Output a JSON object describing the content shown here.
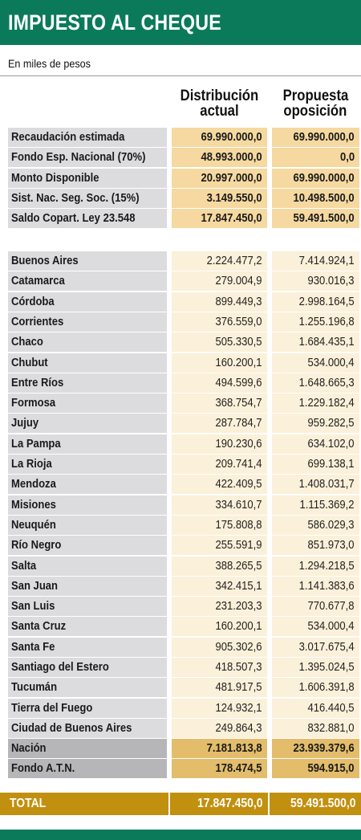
{
  "title": "IMPUESTO AL CHEQUE",
  "subtitle": "En miles de pesos",
  "columns": {
    "a_line1": "Distribución",
    "a_line2": "actual",
    "b_line1": "Propuesta",
    "b_line2": "oposición"
  },
  "summary": [
    {
      "label": "Recaudación estimada",
      "v1": "69.990.000,0",
      "v2": "69.990.000,0"
    },
    {
      "label": "Fondo Esp. Nacional (70%)",
      "v1": "48.993.000,0",
      "v2": "0,0"
    },
    {
      "label": "Monto Disponible",
      "v1": "20.997.000,0",
      "v2": "69.990.000,0"
    },
    {
      "label": "Sist. Nac. Seg. Soc. (15%)",
      "v1": "3.149.550,0",
      "v2": "10.498.500,0"
    },
    {
      "label": "Saldo Copart. Ley 23.548",
      "v1": "17.847.450,0",
      "v2": "59.491.500,0"
    }
  ],
  "provinces": [
    {
      "label": "Buenos Aires",
      "v1": "2.224.477,2",
      "v2": "7.414.924,1"
    },
    {
      "label": "Catamarca",
      "v1": "279.004,9",
      "v2": "930.016,3"
    },
    {
      "label": "Córdoba",
      "v1": "899.449,3",
      "v2": "2.998.164,5"
    },
    {
      "label": "Corrientes",
      "v1": "376.559,0",
      "v2": "1.255.196,8"
    },
    {
      "label": "Chaco",
      "v1": "505.330,5",
      "v2": "1.684.435,1"
    },
    {
      "label": "Chubut",
      "v1": "160.200,1",
      "v2": "534.000,4"
    },
    {
      "label": "Entre Ríos",
      "v1": "494.599,6",
      "v2": "1.648.665,3"
    },
    {
      "label": "Formosa",
      "v1": "368.754,7",
      "v2": "1.229.182,4"
    },
    {
      "label": "Jujuy",
      "v1": "287.784,7",
      "v2": "959.282,5"
    },
    {
      "label": "La Pampa",
      "v1": "190.230,6",
      "v2": "634.102,0"
    },
    {
      "label": "La Rioja",
      "v1": "209.741,4",
      "v2": "699.138,1"
    },
    {
      "label": "Mendoza",
      "v1": "422.409,5",
      "v2": "1.408.031,7"
    },
    {
      "label": "Misiones",
      "v1": "334.610,7",
      "v2": "1.115.369,2"
    },
    {
      "label": "Neuquén",
      "v1": "175.808,8",
      "v2": "586.029,3"
    },
    {
      "label": "Río Negro",
      "v1": "255.591,9",
      "v2": "851.973,0"
    },
    {
      "label": "Salta",
      "v1": "388.265,5",
      "v2": "1.294.218,5"
    },
    {
      "label": "San Juan",
      "v1": "342.415,1",
      "v2": "1.141.383,6"
    },
    {
      "label": "San Luis",
      "v1": "231.203,3",
      "v2": "770.677,8"
    },
    {
      "label": "Santa Cruz",
      "v1": "160.200,1",
      "v2": "534.000,4"
    },
    {
      "label": "Santa Fe",
      "v1": "905.302,6",
      "v2": "3.017.675,4"
    },
    {
      "label": "Santiago del Estero",
      "v1": "418.507,3",
      "v2": "1.395.024,5"
    },
    {
      "label": "Tucumán",
      "v1": "481.917,5",
      "v2": "1.606.391,8"
    },
    {
      "label": "Tierra del Fuego",
      "v1": "124.932,1",
      "v2": "416.440,5"
    },
    {
      "label": "Ciudad de Buenos Aires",
      "v1": "249.864,3",
      "v2": "832.881,0"
    }
  ],
  "national": [
    {
      "label": "Nación",
      "v1": "7.181.813,8",
      "v2": "23.939.379,6"
    },
    {
      "label": "Fondo A.T.N.",
      "v1": "178.474,5",
      "v2": "594.915,0"
    }
  ],
  "total": {
    "label": "TOTAL",
    "v1": "17.847.450,0",
    "v2": "59.491.500,0"
  },
  "colors": {
    "header_green": "#0b7a5a",
    "label_gray": "#dcdcde",
    "value_light": "#fbf0d9",
    "value_mid": "#f5d9a0",
    "value_dark": "#e3bd6b",
    "total_gold": "#c2900f"
  }
}
